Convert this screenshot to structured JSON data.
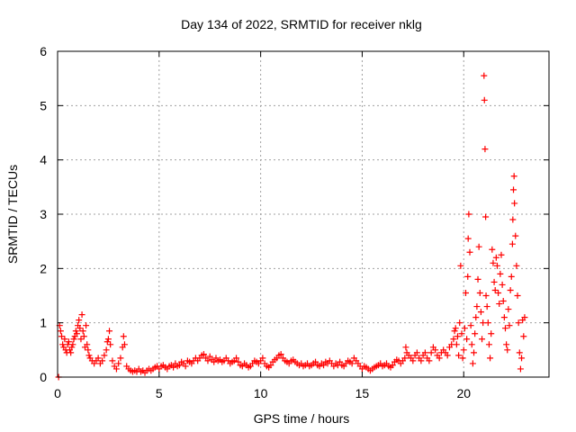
{
  "chart_data": {
    "type": "scatter",
    "title": "Day 134 of 2022, SRMTID for receiver nklg",
    "xlabel": "GPS time / hours",
    "ylabel": "SRMTID / TECUs",
    "xlim": [
      0,
      24.2
    ],
    "ylim": [
      0,
      6
    ],
    "xticks": [
      0,
      5,
      10,
      15,
      20
    ],
    "xtick_labels": [
      "0",
      "5",
      "10",
      "15",
      "20"
    ],
    "yticks": [
      0,
      1,
      2,
      3,
      4,
      5,
      6
    ],
    "ytick_labels": [
      "0",
      "1",
      "2",
      "3",
      "4",
      "5",
      "6"
    ],
    "grid": true,
    "legend": "none",
    "marker": "+",
    "colors": {
      "points": "#ff0000",
      "grid": "#a0a0a0",
      "axes": "#000000"
    },
    "series": [
      {
        "name": "nklg",
        "points": [
          [
            0.05,
            0.0
          ],
          [
            0.1,
            0.95
          ],
          [
            0.15,
            0.85
          ],
          [
            0.2,
            0.75
          ],
          [
            0.25,
            0.6
          ],
          [
            0.3,
            0.55
          ],
          [
            0.35,
            0.7
          ],
          [
            0.4,
            0.5
          ],
          [
            0.45,
            0.45
          ],
          [
            0.5,
            0.6
          ],
          [
            0.55,
            0.65
          ],
          [
            0.6,
            0.5
          ],
          [
            0.65,
            0.45
          ],
          [
            0.7,
            0.55
          ],
          [
            0.75,
            0.6
          ],
          [
            0.8,
            0.7
          ],
          [
            0.85,
            0.75
          ],
          [
            0.9,
            0.85
          ],
          [
            0.95,
            0.8
          ],
          [
            1.0,
            0.95
          ],
          [
            1.05,
            1.05
          ],
          [
            1.1,
            0.9
          ],
          [
            1.15,
            0.7
          ],
          [
            1.2,
            1.15
          ],
          [
            1.25,
            0.85
          ],
          [
            1.3,
            0.75
          ],
          [
            1.35,
            0.55
          ],
          [
            1.4,
            0.95
          ],
          [
            1.45,
            0.6
          ],
          [
            1.5,
            0.5
          ],
          [
            1.55,
            0.4
          ],
          [
            1.6,
            0.35
          ],
          [
            1.7,
            0.3
          ],
          [
            1.8,
            0.25
          ],
          [
            1.9,
            0.3
          ],
          [
            2.0,
            0.35
          ],
          [
            2.1,
            0.25
          ],
          [
            2.2,
            0.3
          ],
          [
            2.3,
            0.4
          ],
          [
            2.4,
            0.5
          ],
          [
            2.45,
            0.65
          ],
          [
            2.5,
            0.7
          ],
          [
            2.55,
            0.85
          ],
          [
            2.6,
            0.6
          ],
          [
            2.7,
            0.3
          ],
          [
            2.8,
            0.2
          ],
          [
            2.9,
            0.15
          ],
          [
            3.0,
            0.25
          ],
          [
            3.1,
            0.35
          ],
          [
            3.2,
            0.55
          ],
          [
            3.25,
            0.75
          ],
          [
            3.3,
            0.6
          ],
          [
            3.4,
            0.2
          ],
          [
            3.5,
            0.15
          ],
          [
            3.6,
            0.12
          ],
          [
            3.7,
            0.1
          ],
          [
            3.8,
            0.12
          ],
          [
            3.9,
            0.1
          ],
          [
            4.0,
            0.15
          ],
          [
            4.1,
            0.1
          ],
          [
            4.2,
            0.12
          ],
          [
            4.3,
            0.08
          ],
          [
            4.4,
            0.12
          ],
          [
            4.5,
            0.15
          ],
          [
            4.6,
            0.12
          ],
          [
            4.7,
            0.15
          ],
          [
            4.8,
            0.18
          ],
          [
            4.9,
            0.2
          ],
          [
            5.0,
            0.15
          ],
          [
            5.1,
            0.2
          ],
          [
            5.2,
            0.22
          ],
          [
            5.3,
            0.18
          ],
          [
            5.4,
            0.15
          ],
          [
            5.5,
            0.2
          ],
          [
            5.6,
            0.22
          ],
          [
            5.7,
            0.18
          ],
          [
            5.8,
            0.25
          ],
          [
            5.9,
            0.2
          ],
          [
            6.0,
            0.22
          ],
          [
            6.1,
            0.28
          ],
          [
            6.2,
            0.25
          ],
          [
            6.3,
            0.2
          ],
          [
            6.4,
            0.3
          ],
          [
            6.5,
            0.28
          ],
          [
            6.6,
            0.25
          ],
          [
            6.7,
            0.3
          ],
          [
            6.8,
            0.35
          ],
          [
            6.9,
            0.3
          ],
          [
            7.0,
            0.35
          ],
          [
            7.1,
            0.4
          ],
          [
            7.2,
            0.42
          ],
          [
            7.3,
            0.35
          ],
          [
            7.4,
            0.3
          ],
          [
            7.5,
            0.38
          ],
          [
            7.6,
            0.32
          ],
          [
            7.7,
            0.28
          ],
          [
            7.8,
            0.35
          ],
          [
            7.9,
            0.3
          ],
          [
            8.0,
            0.32
          ],
          [
            8.1,
            0.28
          ],
          [
            8.2,
            0.3
          ],
          [
            8.3,
            0.35
          ],
          [
            8.4,
            0.3
          ],
          [
            8.5,
            0.25
          ],
          [
            8.6,
            0.28
          ],
          [
            8.7,
            0.3
          ],
          [
            8.8,
            0.35
          ],
          [
            8.9,
            0.28
          ],
          [
            9.0,
            0.22
          ],
          [
            9.1,
            0.2
          ],
          [
            9.2,
            0.25
          ],
          [
            9.3,
            0.22
          ],
          [
            9.4,
            0.18
          ],
          [
            9.5,
            0.2
          ],
          [
            9.6,
            0.25
          ],
          [
            9.7,
            0.3
          ],
          [
            9.8,
            0.28
          ],
          [
            9.9,
            0.25
          ],
          [
            10.0,
            0.3
          ],
          [
            10.1,
            0.35
          ],
          [
            10.2,
            0.25
          ],
          [
            10.3,
            0.2
          ],
          [
            10.4,
            0.18
          ],
          [
            10.5,
            0.22
          ],
          [
            10.6,
            0.28
          ],
          [
            10.7,
            0.32
          ],
          [
            10.8,
            0.35
          ],
          [
            10.9,
            0.4
          ],
          [
            11.0,
            0.42
          ],
          [
            11.1,
            0.35
          ],
          [
            11.2,
            0.3
          ],
          [
            11.3,
            0.28
          ],
          [
            11.4,
            0.25
          ],
          [
            11.5,
            0.3
          ],
          [
            11.6,
            0.32
          ],
          [
            11.7,
            0.28
          ],
          [
            11.8,
            0.25
          ],
          [
            11.9,
            0.22
          ],
          [
            12.0,
            0.25
          ],
          [
            12.1,
            0.2
          ],
          [
            12.2,
            0.22
          ],
          [
            12.3,
            0.25
          ],
          [
            12.4,
            0.2
          ],
          [
            12.5,
            0.22
          ],
          [
            12.6,
            0.25
          ],
          [
            12.7,
            0.28
          ],
          [
            12.8,
            0.22
          ],
          [
            12.9,
            0.2
          ],
          [
            13.0,
            0.25
          ],
          [
            13.1,
            0.22
          ],
          [
            13.2,
            0.28
          ],
          [
            13.3,
            0.25
          ],
          [
            13.4,
            0.3
          ],
          [
            13.5,
            0.25
          ],
          [
            13.6,
            0.2
          ],
          [
            13.7,
            0.25
          ],
          [
            13.8,
            0.22
          ],
          [
            13.9,
            0.28
          ],
          [
            14.0,
            0.22
          ],
          [
            14.1,
            0.2
          ],
          [
            14.2,
            0.25
          ],
          [
            14.3,
            0.3
          ],
          [
            14.4,
            0.28
          ],
          [
            14.5,
            0.25
          ],
          [
            14.6,
            0.35
          ],
          [
            14.7,
            0.3
          ],
          [
            14.8,
            0.25
          ],
          [
            14.9,
            0.2
          ],
          [
            15.0,
            0.15
          ],
          [
            15.1,
            0.2
          ],
          [
            15.2,
            0.18
          ],
          [
            15.3,
            0.15
          ],
          [
            15.4,
            0.12
          ],
          [
            15.5,
            0.15
          ],
          [
            15.6,
            0.18
          ],
          [
            15.7,
            0.2
          ],
          [
            15.8,
            0.22
          ],
          [
            15.9,
            0.25
          ],
          [
            16.0,
            0.2
          ],
          [
            16.1,
            0.22
          ],
          [
            16.2,
            0.25
          ],
          [
            16.3,
            0.2
          ],
          [
            16.4,
            0.18
          ],
          [
            16.5,
            0.22
          ],
          [
            16.6,
            0.28
          ],
          [
            16.7,
            0.32
          ],
          [
            16.8,
            0.3
          ],
          [
            16.9,
            0.25
          ],
          [
            17.0,
            0.3
          ],
          [
            17.1,
            0.35
          ],
          [
            17.15,
            0.55
          ],
          [
            17.2,
            0.45
          ],
          [
            17.3,
            0.4
          ],
          [
            17.4,
            0.35
          ],
          [
            17.5,
            0.3
          ],
          [
            17.6,
            0.4
          ],
          [
            17.7,
            0.45
          ],
          [
            17.8,
            0.35
          ],
          [
            17.9,
            0.3
          ],
          [
            18.0,
            0.4
          ],
          [
            18.1,
            0.45
          ],
          [
            18.2,
            0.35
          ],
          [
            18.3,
            0.3
          ],
          [
            18.4,
            0.45
          ],
          [
            18.5,
            0.55
          ],
          [
            18.6,
            0.5
          ],
          [
            18.7,
            0.4
          ],
          [
            18.8,
            0.35
          ],
          [
            18.9,
            0.45
          ],
          [
            19.0,
            0.5
          ],
          [
            19.1,
            0.45
          ],
          [
            19.2,
            0.4
          ],
          [
            19.3,
            0.55
          ],
          [
            19.4,
            0.6
          ],
          [
            19.5,
            0.7
          ],
          [
            19.55,
            0.85
          ],
          [
            19.6,
            0.9
          ],
          [
            19.65,
            0.6
          ],
          [
            19.7,
            0.75
          ],
          [
            19.75,
            0.4
          ],
          [
            19.8,
            1.0
          ],
          [
            19.85,
            2.05
          ],
          [
            19.9,
            0.8
          ],
          [
            19.95,
            0.35
          ],
          [
            20.0,
            0.5
          ],
          [
            20.05,
            0.9
          ],
          [
            20.1,
            1.55
          ],
          [
            20.15,
            0.7
          ],
          [
            20.2,
            1.85
          ],
          [
            20.22,
            2.55
          ],
          [
            20.25,
            3.0
          ],
          [
            20.3,
            2.3
          ],
          [
            20.35,
            0.95
          ],
          [
            20.4,
            0.6
          ],
          [
            20.45,
            0.25
          ],
          [
            20.5,
            0.45
          ],
          [
            20.55,
            0.8
          ],
          [
            20.6,
            1.1
          ],
          [
            20.65,
            1.3
          ],
          [
            20.7,
            1.8
          ],
          [
            20.75,
            2.4
          ],
          [
            20.8,
            1.55
          ],
          [
            20.85,
            1.2
          ],
          [
            20.9,
            0.7
          ],
          [
            20.95,
            1.0
          ],
          [
            21.0,
            5.55
          ],
          [
            21.02,
            5.1
          ],
          [
            21.05,
            4.2
          ],
          [
            21.08,
            2.95
          ],
          [
            21.1,
            1.5
          ],
          [
            21.15,
            1.3
          ],
          [
            21.2,
            1.0
          ],
          [
            21.25,
            0.6
          ],
          [
            21.3,
            0.35
          ],
          [
            21.35,
            0.8
          ],
          [
            21.4,
            2.35
          ],
          [
            21.45,
            2.1
          ],
          [
            21.5,
            1.75
          ],
          [
            21.55,
            1.6
          ],
          [
            21.6,
            2.2
          ],
          [
            21.65,
            2.05
          ],
          [
            21.7,
            1.55
          ],
          [
            21.75,
            1.35
          ],
          [
            21.8,
            1.9
          ],
          [
            21.85,
            2.25
          ],
          [
            21.9,
            1.7
          ],
          [
            21.95,
            1.4
          ],
          [
            22.0,
            1.1
          ],
          [
            22.05,
            0.9
          ],
          [
            22.1,
            0.6
          ],
          [
            22.15,
            0.5
          ],
          [
            22.2,
            1.25
          ],
          [
            22.25,
            0.95
          ],
          [
            22.3,
            1.6
          ],
          [
            22.35,
            1.85
          ],
          [
            22.4,
            2.45
          ],
          [
            22.42,
            2.9
          ],
          [
            22.45,
            3.45
          ],
          [
            22.48,
            3.7
          ],
          [
            22.5,
            3.2
          ],
          [
            22.55,
            2.6
          ],
          [
            22.6,
            2.05
          ],
          [
            22.65,
            1.5
          ],
          [
            22.7,
            1.0
          ],
          [
            22.75,
            0.45
          ],
          [
            22.8,
            0.15
          ],
          [
            22.85,
            0.35
          ],
          [
            22.9,
            1.05
          ],
          [
            22.95,
            0.75
          ],
          [
            23.0,
            1.1
          ]
        ]
      }
    ]
  }
}
